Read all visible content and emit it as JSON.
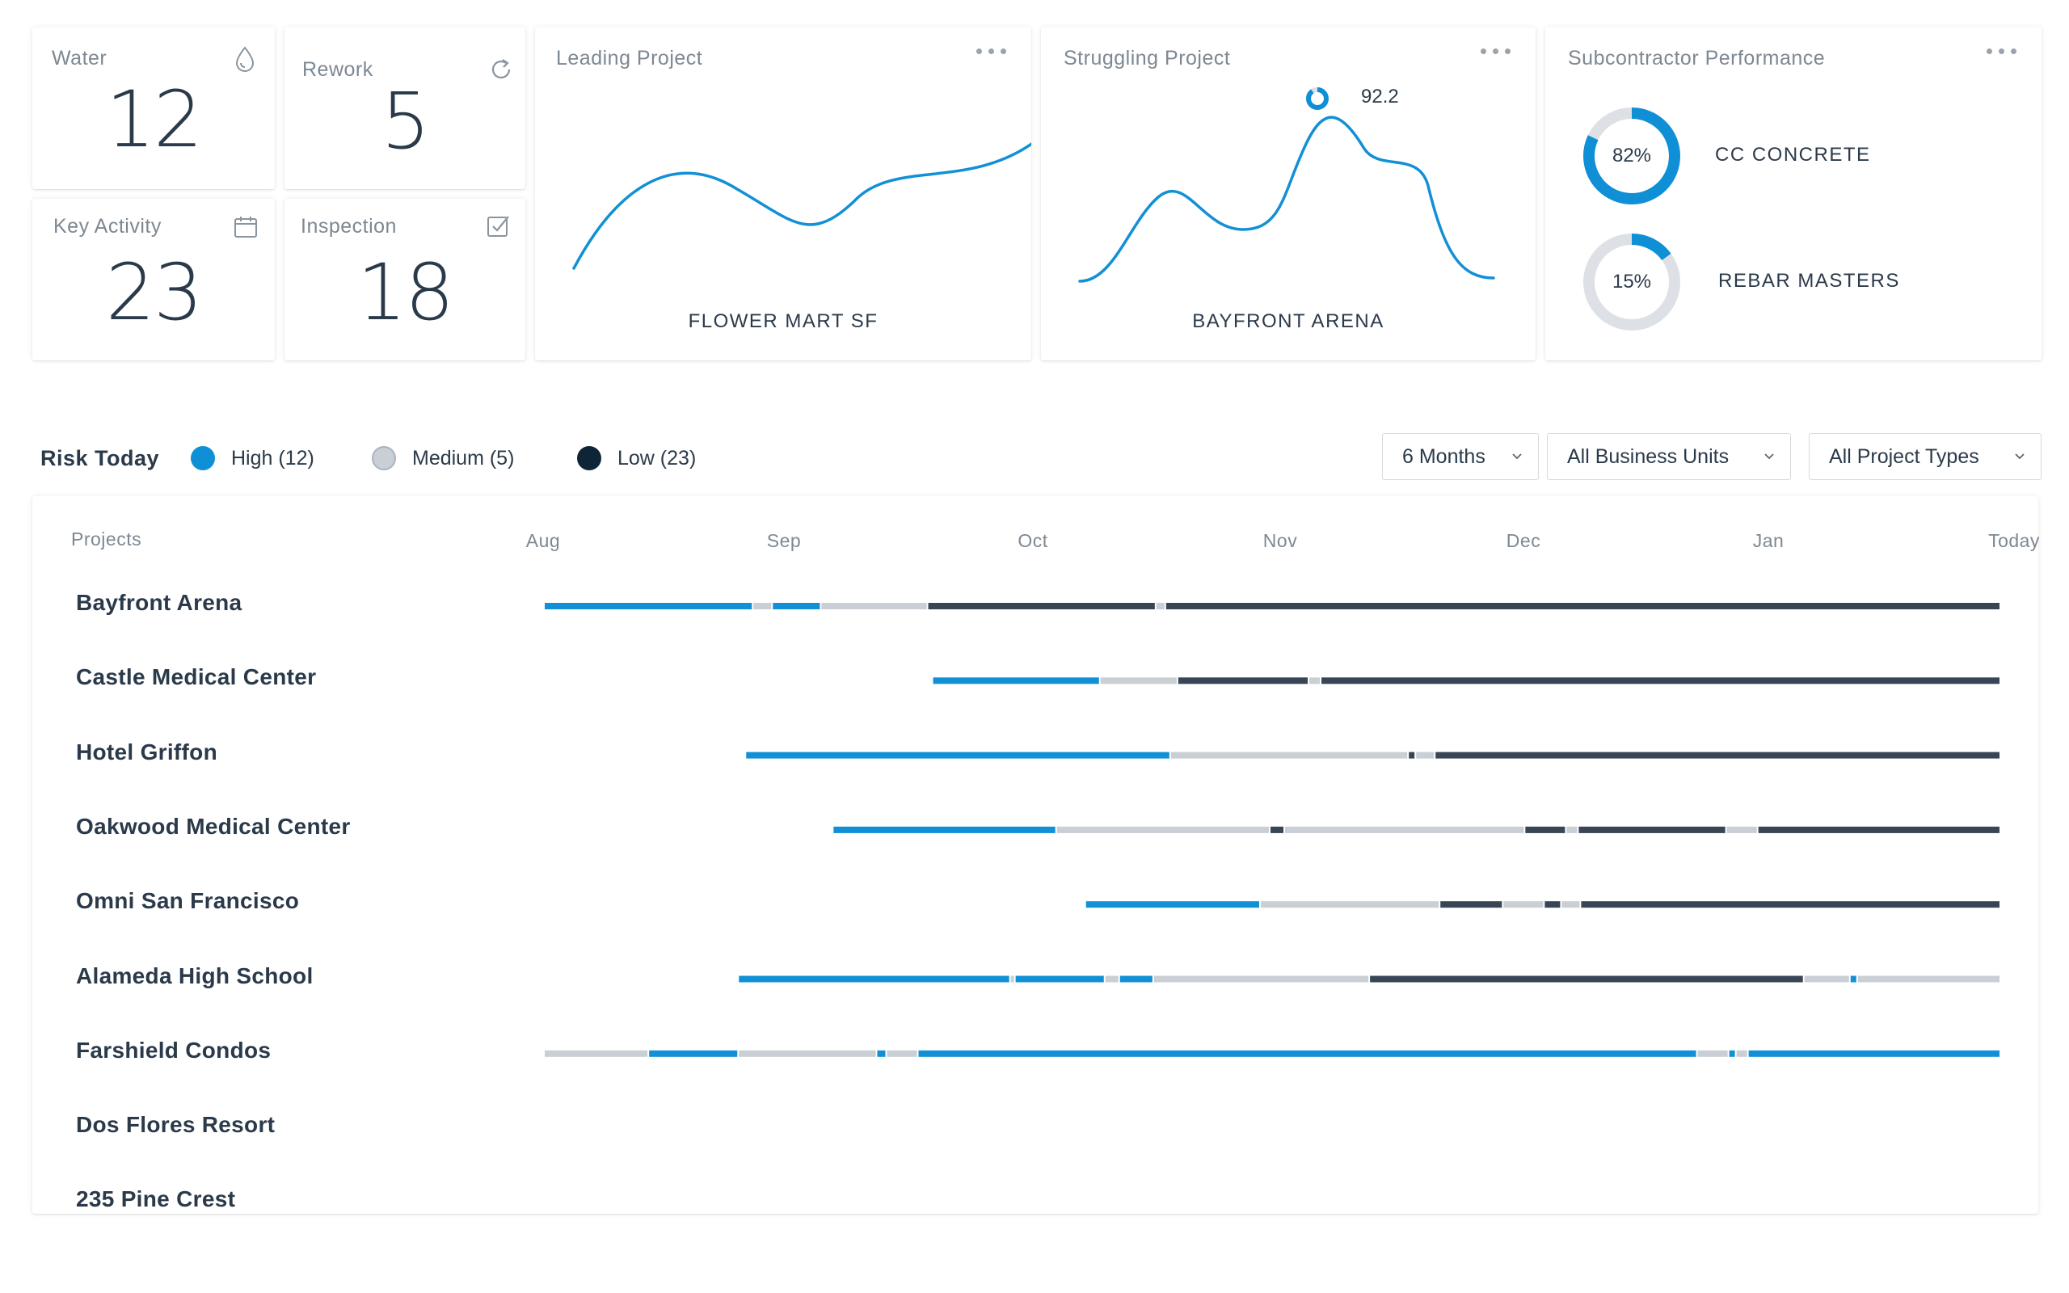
{
  "stats": [
    {
      "title": "Water",
      "value": "12",
      "icon": "water-drop-icon"
    },
    {
      "title": "Rework",
      "value": "5",
      "icon": "refresh-icon"
    },
    {
      "title": "Key Activity",
      "value": "23",
      "icon": "calendar-icon"
    },
    {
      "title": "Inspection",
      "value": "18",
      "icon": "checkbox-icon"
    }
  ],
  "leading": {
    "title": "Leading Project",
    "caption": "FLOWER MART SF",
    "menu_icon": "more-dots-icon"
  },
  "struggling": {
    "title": "Struggling Project",
    "caption": "BAYFRONT ARENA",
    "score": "92.2",
    "score_fraction": 0.9,
    "menu_icon": "more-dots-icon"
  },
  "subcontractors": {
    "title": "Subcontractor Performance",
    "menu_icon": "more-dots-icon",
    "items": [
      {
        "name": "CC CONCRETE",
        "percent_label": "82%",
        "percent": 82
      },
      {
        "name": "REBAR MASTERS",
        "percent_label": "15%",
        "percent": 15
      }
    ]
  },
  "risk": {
    "title": "Risk Today",
    "legend": [
      {
        "label": "High (12)",
        "color": "#0f8fd6"
      },
      {
        "label": "Medium (5)",
        "color": "#c9cfd5"
      },
      {
        "label": "Low (23)",
        "color": "#0d2535"
      }
    ]
  },
  "filters": {
    "period": "6 Months",
    "business_units": "All Business Units",
    "project_types": "All Project Types"
  },
  "colors": {
    "high": "#1290d6",
    "medium": "#c9cfd5",
    "low": "#384555",
    "accent": "#0f8fd6"
  },
  "chart_data": {
    "type": "timeline",
    "x_header": "Projects",
    "x_labels": [
      "Aug",
      "Sep",
      "Oct",
      "Nov",
      "Dec",
      "Jan",
      "Today"
    ],
    "x_range": [
      0,
      6
    ],
    "rows": [
      {
        "project": "Bayfront Arena",
        "segments": [
          [
            0,
            0.86,
            "high"
          ],
          [
            0.86,
            0.94,
            "medium"
          ],
          [
            0.94,
            1.14,
            "high"
          ],
          [
            1.14,
            1.58,
            "medium"
          ],
          [
            1.58,
            2.52,
            "low"
          ],
          [
            2.52,
            2.56,
            "medium"
          ],
          [
            2.56,
            6,
            "low"
          ]
        ]
      },
      {
        "project": "Castle Medical Center",
        "segments": [
          [
            1.6,
            2.29,
            "high"
          ],
          [
            2.29,
            2.61,
            "medium"
          ],
          [
            2.61,
            3.15,
            "low"
          ],
          [
            3.15,
            3.2,
            "medium"
          ],
          [
            3.2,
            6,
            "low"
          ]
        ]
      },
      {
        "project": "Hotel Griffon",
        "segments": [
          [
            0.83,
            2.58,
            "high"
          ],
          [
            2.58,
            3.56,
            "medium"
          ],
          [
            3.56,
            3.59,
            "low"
          ],
          [
            3.59,
            3.67,
            "medium"
          ],
          [
            3.67,
            6,
            "low"
          ]
        ]
      },
      {
        "project": "Oakwood Medical Center",
        "segments": [
          [
            1.19,
            2.11,
            "high"
          ],
          [
            2.11,
            2.99,
            "medium"
          ],
          [
            2.99,
            3.05,
            "low"
          ],
          [
            3.05,
            4.04,
            "medium"
          ],
          [
            4.04,
            4.21,
            "low"
          ],
          [
            4.21,
            4.26,
            "medium"
          ],
          [
            4.26,
            4.87,
            "low"
          ],
          [
            4.87,
            5.0,
            "medium"
          ],
          [
            5.0,
            6,
            "low"
          ]
        ]
      },
      {
        "project": "Omni San Francisco",
        "segments": [
          [
            2.23,
            2.95,
            "high"
          ],
          [
            2.95,
            3.69,
            "medium"
          ],
          [
            3.69,
            3.95,
            "low"
          ],
          [
            3.95,
            4.12,
            "medium"
          ],
          [
            4.12,
            4.19,
            "low"
          ],
          [
            4.19,
            4.27,
            "medium"
          ],
          [
            4.27,
            6,
            "low"
          ]
        ]
      },
      {
        "project": "Alameda High School",
        "segments": [
          [
            0.8,
            1.92,
            "high"
          ],
          [
            1.92,
            1.94,
            "medium"
          ],
          [
            1.94,
            2.31,
            "high"
          ],
          [
            2.31,
            2.37,
            "medium"
          ],
          [
            2.37,
            2.51,
            "high"
          ],
          [
            2.51,
            3.4,
            "medium"
          ],
          [
            3.4,
            5.19,
            "low"
          ],
          [
            5.19,
            5.38,
            "medium"
          ],
          [
            5.38,
            5.41,
            "high"
          ],
          [
            5.41,
            6,
            "medium"
          ]
        ]
      },
      {
        "project": "Farshield Condos",
        "segments": [
          [
            0,
            0.43,
            "medium"
          ],
          [
            0.43,
            0.8,
            "high"
          ],
          [
            0.8,
            1.37,
            "medium"
          ],
          [
            1.37,
            1.41,
            "high"
          ],
          [
            1.41,
            1.54,
            "medium"
          ],
          [
            1.54,
            4.75,
            "high"
          ],
          [
            4.75,
            4.88,
            "medium"
          ],
          [
            4.88,
            4.91,
            "high"
          ],
          [
            4.91,
            4.96,
            "medium"
          ],
          [
            4.96,
            6,
            "high"
          ]
        ]
      },
      {
        "project": "Dos Flores Resort",
        "segments": []
      },
      {
        "project": "235 Pine Crest",
        "segments": []
      }
    ]
  }
}
